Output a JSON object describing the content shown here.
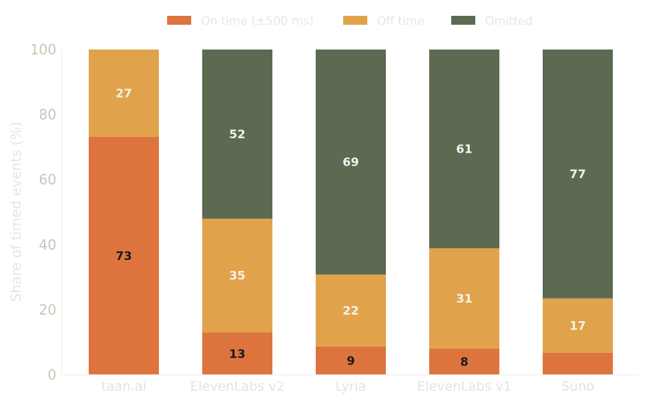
{
  "chart_data": {
    "type": "bar",
    "stacked": true,
    "categories": [
      "taan.ai",
      "ElevenLabs v2",
      "Lyria",
      "ElevenLabs v1",
      "Suno"
    ],
    "series": [
      {
        "name": "On time (±500 ms)",
        "color": "#dd743e",
        "values": [
          73.2,
          13.0,
          8.7,
          8.1,
          6.8
        ],
        "labels": [
          "73",
          "13",
          "9",
          "8",
          ""
        ],
        "label_color": "#1a1a1a"
      },
      {
        "name": "Off time",
        "color": "#e0a34c",
        "values": [
          26.8,
          35.0,
          22.1,
          30.8,
          16.7
        ],
        "labels": [
          "27",
          "35",
          "22",
          "31",
          "17"
        ],
        "label_color": "#f7f1e6"
      },
      {
        "name": "Omitted",
        "color": "#5c6a52",
        "values": [
          0,
          52.0,
          69.2,
          61.1,
          76.5
        ],
        "labels": [
          "",
          "52",
          "69",
          "61",
          "77"
        ],
        "label_color": "#f1f1f1"
      }
    ],
    "xlabel": "",
    "ylabel": "Share of timed events (%)",
    "ylim": [
      0,
      100
    ],
    "yticks": [
      "0",
      "20",
      "40",
      "60",
      "80",
      "100"
    ],
    "grid": false,
    "legend_position": "top-center"
  }
}
